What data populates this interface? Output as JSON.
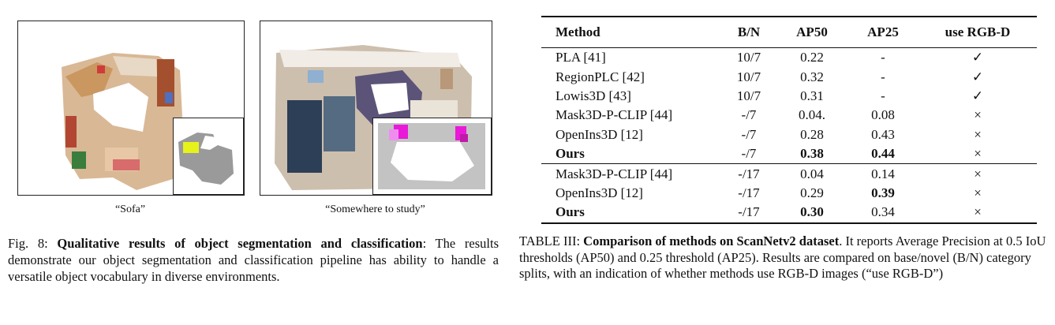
{
  "figure": {
    "panels": [
      {
        "caption": "“Sofa”"
      },
      {
        "caption": "“Somewhere to study”"
      }
    ],
    "caption_label": "Fig. 8:",
    "caption_title": "Qualitative results of object segmentation and classification",
    "caption_body": ": The results demonstrate our object segmentation and classification pipeline has ability to handle a versatile object vocabulary in diverse environments.",
    "colors": {
      "highlight_yellow": "#e6f21a",
      "highlight_magenta": "#e81ad8",
      "mask_gray": "#9a9a9a"
    }
  },
  "table": {
    "headers": [
      "Method",
      "B/N",
      "AP50",
      "AP25",
      "use RGB-D"
    ],
    "group1": [
      {
        "method": "PLA [41]",
        "bn": "10/7",
        "ap50": "0.22",
        "ap25": "-",
        "rgbd": "✓",
        "bold_method": false,
        "bold_ap50": false,
        "bold_ap25": false
      },
      {
        "method": "RegionPLC [42]",
        "bn": "10/7",
        "ap50": "0.32",
        "ap25": "-",
        "rgbd": "✓",
        "bold_method": false,
        "bold_ap50": false,
        "bold_ap25": false
      },
      {
        "method": "Lowis3D [43]",
        "bn": "10/7",
        "ap50": "0.31",
        "ap25": "-",
        "rgbd": "✓",
        "bold_method": false,
        "bold_ap50": false,
        "bold_ap25": false
      },
      {
        "method": "Mask3D-P-CLIP [44]",
        "bn": "-/7",
        "ap50": "0.04.",
        "ap25": "0.08",
        "rgbd": "×",
        "bold_method": false,
        "bold_ap50": false,
        "bold_ap25": false
      },
      {
        "method": "OpenIns3D [12]",
        "bn": "-/7",
        "ap50": "0.28",
        "ap25": "0.43",
        "rgbd": "×",
        "bold_method": false,
        "bold_ap50": false,
        "bold_ap25": false
      },
      {
        "method": "Ours",
        "bn": "-/7",
        "ap50": "0.38",
        "ap25": "0.44",
        "rgbd": "×",
        "bold_method": true,
        "bold_ap50": true,
        "bold_ap25": true
      }
    ],
    "group2": [
      {
        "method": "Mask3D-P-CLIP [44]",
        "bn": "-/17",
        "ap50": "0.04",
        "ap25": "0.14",
        "rgbd": "×",
        "bold_method": false,
        "bold_ap50": false,
        "bold_ap25": false
      },
      {
        "method": "OpenIns3D [12]",
        "bn": "-/17",
        "ap50": "0.29",
        "ap25": "0.39",
        "rgbd": "×",
        "bold_method": false,
        "bold_ap50": false,
        "bold_ap25": true
      },
      {
        "method": "Ours",
        "bn": "-/17",
        "ap50": "0.30",
        "ap25": "0.34",
        "rgbd": "×",
        "bold_method": true,
        "bold_ap50": true,
        "bold_ap25": false
      }
    ],
    "caption_label": "TABLE III:",
    "caption_title": "Comparison of methods on ScanNetv2 dataset",
    "caption_body": ". It reports Average Precision at 0.5 IoU thresholds (AP50) and 0.25 threshold (AP25). Results are compared on base/novel (B/N) category splits, with an indication of whether methods use RGB-D images (“use RGB-D”)"
  }
}
